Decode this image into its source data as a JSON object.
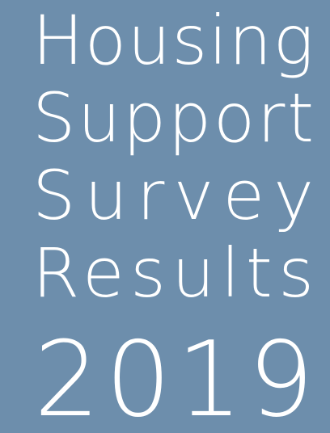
{
  "cover": {
    "title_lines": [
      "Housing",
      "Support",
      "Survey",
      "Results"
    ],
    "year": "2019"
  }
}
